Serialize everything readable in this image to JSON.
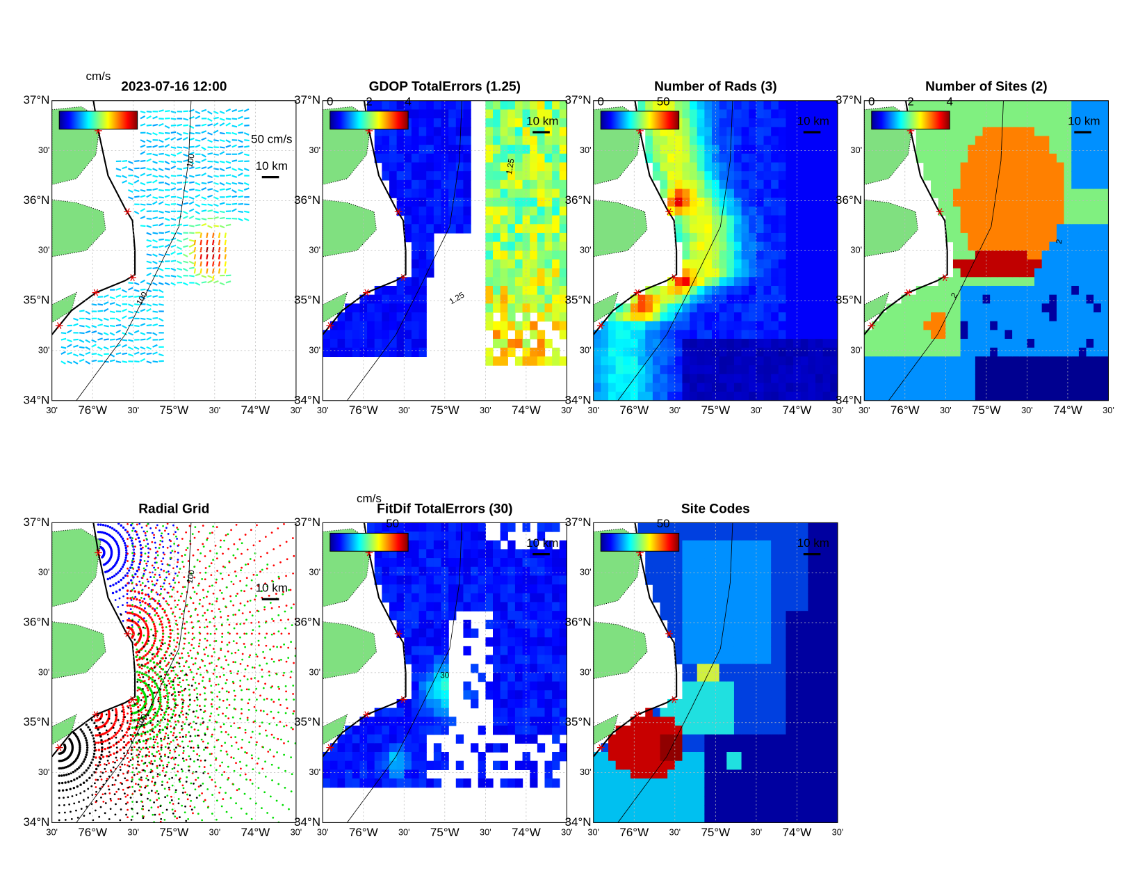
{
  "lat_ticks": [
    "37°N",
    "30'",
    "36°N",
    "30'",
    "35°N",
    "30'",
    "34°N"
  ],
  "lon_ticks": [
    "30'",
    "76°W",
    "30'",
    "75°W",
    "30'",
    "74°W",
    "30'"
  ],
  "panels": [
    {
      "title": "2023-07-16 12:00",
      "colorbar_label": "cm/s",
      "scale_label": "10 km",
      "vector_scale_label": "50 cm/s",
      "contour_labels": [
        "100",
        "100"
      ]
    },
    {
      "title": "GDOP TotalErrors (1.25)",
      "colorbar_ticks": [
        "0",
        "2",
        "4"
      ],
      "scale_label": "10 km",
      "contour_labels": [
        "1.25",
        "1.25"
      ]
    },
    {
      "title": "Number of Rads (3)",
      "colorbar_ticks": [
        "0",
        "50"
      ],
      "scale_label": "10 km"
    },
    {
      "title": "Number of Sites (2)",
      "colorbar_ticks": [
        "0",
        "2",
        "4"
      ],
      "scale_label": "10 km",
      "contour_labels": [
        "2",
        "2"
      ]
    },
    {
      "title": "Radial Grid",
      "scale_label": "10 km",
      "contour_labels": [
        "100",
        "100"
      ]
    },
    {
      "title": "FitDif TotalErrors (30)",
      "colorbar_label": "cm/s",
      "colorbar_ticks": [
        "50"
      ],
      "scale_label": "10 km",
      "contour_labels": [
        "30"
      ]
    },
    {
      "title": "Site Codes",
      "colorbar_ticks": [
        "50"
      ],
      "scale_label": "10 km"
    }
  ]
}
